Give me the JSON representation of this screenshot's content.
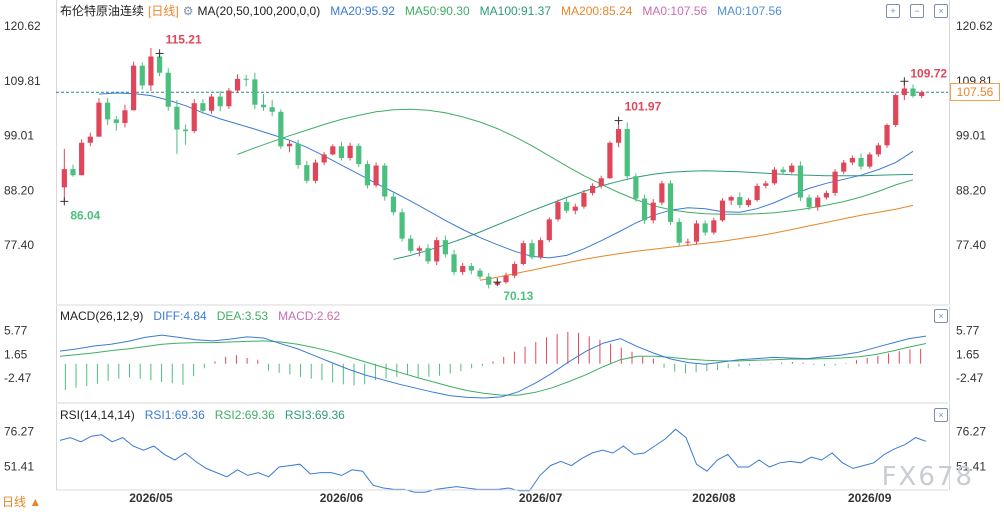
{
  "header": {
    "title": "布伦特原油连续",
    "period": "[日线]",
    "ma_label": "MA(20,50,100,200,0,0)",
    "ma20": "MA20:95.92",
    "ma50": "MA50:90.30",
    "ma100": "MA100:91.37",
    "ma200": "MA200:85.24",
    "ma0a": "MA0:107.56",
    "ma0b": "MA0:107.56"
  },
  "macd_header": {
    "label": "MACD(26,12,9)",
    "diff": "DIFF:4.84",
    "dea": "DEA:3.53",
    "macd": "MACD:2.62"
  },
  "rsi_header": {
    "label": "RSI(14,14,14)",
    "rsi1": "RSI1:69.36",
    "rsi2": "RSI2:69.36",
    "rsi3": "RSI3:69.36"
  },
  "footer": {
    "period_select": "日线 ▲",
    "watermark": "FX678"
  },
  "colors": {
    "up": "#e0465a",
    "down": "#4bbf7e",
    "ma20": "#3a7bd5",
    "ma50": "#3fae64",
    "ma100": "#2f9a7a",
    "ma200": "#e8862a",
    "ma0": "#c86db0",
    "price_line": "#1e8a9a"
  },
  "chart_data": [
    {
      "type": "candlestick",
      "y_ticks": [
        "120.62",
        "109.81",
        "99.01",
        "88.20",
        "77.40"
      ],
      "ylim": [
        66.6,
        121.8
      ],
      "x_ticks": [
        "2026/05",
        "2026/06",
        "2026/07",
        "2026/08",
        "2026/09"
      ],
      "last_price": "107.56",
      "annotations": [
        "115.21",
        "86.04",
        "101.97",
        "70.13",
        "109.72"
      ],
      "candles": [
        [
          88.8,
          96.4,
          86.0,
          92.4
        ],
        [
          92.4,
          93.3,
          90.9,
          91.2
        ],
        [
          91.2,
          98.3,
          91.2,
          97.6
        ],
        [
          97.6,
          99.6,
          96.9,
          98.8
        ],
        [
          98.8,
          106.4,
          98.8,
          105.5
        ],
        [
          105.5,
          106.4,
          101.1,
          102.2
        ],
        [
          102.2,
          102.9,
          100.0,
          101.5
        ],
        [
          101.5,
          105.1,
          100.6,
          104.0
        ],
        [
          104.0,
          113.6,
          104.0,
          112.8
        ],
        [
          112.8,
          113.5,
          108.1,
          108.9
        ],
        [
          108.9,
          116.3,
          107.8,
          114.6
        ],
        [
          114.6,
          115.2,
          110.7,
          111.4
        ],
        [
          111.4,
          112.3,
          103.9,
          104.7
        ],
        [
          104.7,
          106.0,
          95.4,
          100.2
        ],
        [
          100.2,
          101.2,
          97.2,
          99.9
        ],
        [
          99.9,
          106.2,
          99.5,
          105.4
        ],
        [
          105.4,
          106.2,
          103.3,
          103.9
        ],
        [
          103.9,
          107.2,
          103.3,
          106.7
        ],
        [
          106.7,
          107.8,
          103.8,
          104.8
        ],
        [
          104.8,
          108.4,
          104.3,
          107.9
        ],
        [
          107.9,
          111.1,
          107.4,
          110.2
        ],
        [
          110.2,
          111.0,
          108.7,
          110.1
        ],
        [
          110.1,
          111.4,
          104.2,
          105.1
        ],
        [
          105.1,
          107.2,
          103.9,
          104.6
        ],
        [
          104.6,
          106.1,
          102.8,
          103.7
        ],
        [
          103.7,
          104.2,
          96.4,
          96.9
        ],
        [
          96.9,
          98.1,
          95.7,
          97.4
        ],
        [
          97.4,
          98.2,
          92.5,
          93.2
        ],
        [
          93.2,
          94.0,
          89.6,
          90.1
        ],
        [
          90.1,
          94.3,
          89.6,
          93.7
        ],
        [
          93.7,
          95.8,
          93.2,
          95.3
        ],
        [
          95.3,
          97.3,
          95.1,
          96.9
        ],
        [
          96.9,
          97.8,
          94.1,
          94.6
        ],
        [
          94.6,
          97.6,
          94.1,
          97.0
        ],
        [
          97.0,
          97.5,
          92.8,
          93.4
        ],
        [
          93.4,
          94.1,
          88.6,
          89.2
        ],
        [
          89.2,
          93.7,
          88.8,
          93.1
        ],
        [
          93.1,
          93.6,
          86.2,
          87.0
        ],
        [
          87.0,
          87.9,
          83.3,
          83.9
        ],
        [
          83.9,
          84.6,
          78.1,
          78.7
        ],
        [
          78.7,
          79.4,
          75.8,
          76.3
        ],
        [
          76.3,
          77.3,
          75.2,
          76.8
        ],
        [
          76.8,
          77.6,
          73.7,
          74.2
        ],
        [
          74.2,
          79.0,
          73.5,
          78.4
        ],
        [
          78.4,
          79.3,
          75.0,
          75.6
        ],
        [
          75.6,
          76.5,
          71.5,
          72.1
        ],
        [
          72.1,
          73.9,
          71.5,
          73.3
        ],
        [
          73.3,
          73.9,
          71.7,
          72.4
        ],
        [
          72.4,
          72.9,
          70.7,
          71.2
        ],
        [
          71.2,
          71.9,
          68.9,
          69.6
        ],
        [
          69.6,
          70.3,
          70.1,
          70.1
        ],
        [
          70.1,
          72.0,
          69.8,
          71.4
        ],
        [
          71.4,
          74.2,
          70.9,
          73.7
        ],
        [
          73.7,
          78.3,
          73.4,
          77.8
        ],
        [
          77.8,
          78.5,
          74.6,
          75.0
        ],
        [
          75.0,
          78.9,
          74.6,
          78.4
        ],
        [
          78.4,
          82.9,
          78.0,
          82.5
        ],
        [
          82.5,
          86.4,
          82.1,
          85.9
        ],
        [
          85.9,
          86.7,
          83.7,
          84.2
        ],
        [
          84.2,
          85.6,
          83.5,
          85.0
        ],
        [
          85.0,
          88.3,
          84.6,
          87.7
        ],
        [
          87.7,
          89.6,
          87.2,
          89.1
        ],
        [
          89.1,
          91.1,
          88.6,
          90.6
        ],
        [
          90.6,
          97.9,
          90.5,
          97.6
        ],
        [
          97.6,
          102.0,
          96.7,
          100.3
        ],
        [
          100.3,
          101.6,
          90.2,
          91.0
        ],
        [
          91.0,
          91.6,
          86.0,
          86.6
        ],
        [
          86.6,
          87.4,
          81.6,
          82.3
        ],
        [
          82.3,
          86.5,
          81.7,
          85.8
        ],
        [
          85.8,
          90.1,
          85.3,
          89.6
        ],
        [
          89.6,
          90.2,
          81.4,
          82.0
        ],
        [
          82.0,
          82.7,
          77.2,
          77.9
        ],
        [
          77.9,
          78.7,
          77.3,
          78.1
        ],
        [
          78.1,
          82.3,
          77.6,
          81.7
        ],
        [
          81.7,
          82.3,
          79.3,
          79.9
        ],
        [
          79.9,
          82.8,
          79.5,
          82.3
        ],
        [
          82.3,
          86.7,
          82.0,
          86.2
        ],
        [
          86.2,
          87.2,
          85.3,
          86.9
        ],
        [
          86.9,
          87.8,
          84.7,
          85.3
        ],
        [
          85.3,
          86.7,
          84.9,
          86.3
        ],
        [
          86.3,
          89.6,
          86.0,
          89.1
        ],
        [
          89.1,
          90.1,
          88.6,
          89.6
        ],
        [
          89.6,
          92.8,
          89.3,
          92.3
        ],
        [
          92.3,
          92.9,
          91.3,
          91.8
        ],
        [
          91.8,
          93.6,
          91.5,
          93.1
        ],
        [
          93.1,
          93.9,
          86.1,
          86.8
        ],
        [
          86.8,
          87.4,
          84.3,
          84.9
        ],
        [
          84.9,
          87.3,
          84.2,
          86.8
        ],
        [
          86.8,
          88.2,
          86.4,
          87.7
        ],
        [
          87.7,
          92.4,
          87.1,
          91.9
        ],
        [
          91.9,
          94.2,
          91.4,
          93.7
        ],
        [
          93.7,
          95.1,
          93.2,
          94.6
        ],
        [
          94.6,
          95.5,
          92.3,
          92.9
        ],
        [
          92.9,
          95.7,
          92.5,
          95.3
        ],
        [
          95.3,
          97.6,
          94.8,
          97.1
        ],
        [
          97.1,
          101.4,
          96.6,
          101.1
        ],
        [
          101.1,
          107.3,
          100.7,
          107.0
        ],
        [
          107.0,
          109.7,
          106.0,
          108.3
        ],
        [
          108.3,
          109.1,
          106.5,
          106.8
        ],
        [
          106.8,
          107.9,
          106.4,
          107.56
        ]
      ],
      "ma20": [
        107.2,
        107.4,
        107.3,
        106.9,
        106.0,
        104.9,
        103.5,
        102.3,
        101.3,
        100.3,
        99.2,
        98.1,
        96.7,
        95.0,
        93.2,
        91.4,
        89.6,
        87.9,
        86.1,
        84.2,
        82.3,
        80.5,
        78.9,
        77.5,
        76.2,
        75.2,
        74.9,
        75.4,
        76.7,
        78.3,
        80.0,
        81.8,
        83.3,
        84.3,
        84.8,
        84.6,
        84.0,
        83.9,
        84.6,
        85.8,
        87.3,
        88.6,
        89.6,
        90.4,
        91.2,
        92.3,
        93.7,
        95.92
      ],
      "ma50": [
        95.3,
        96.6,
        97.8,
        99.0,
        100.1,
        101.2,
        102.2,
        103.0,
        103.7,
        104.1,
        104.2,
        104.0,
        103.5,
        102.7,
        101.7,
        100.4,
        98.8,
        97.0,
        95.0,
        93.0,
        91.1,
        89.4,
        87.8,
        86.4,
        85.2,
        84.4,
        83.9,
        83.6,
        83.5,
        83.5,
        83.6,
        83.8,
        84.2,
        84.7,
        85.3,
        86.0,
        86.9,
        88.0,
        89.3,
        90.3
      ],
      "ma100": [
        74.6,
        75.4,
        76.4,
        77.5,
        78.7,
        80.0,
        81.4,
        82.8,
        84.2,
        85.5,
        86.8,
        88.0,
        89.1,
        90.0,
        90.8,
        91.4,
        91.8,
        92.0,
        92.1,
        92.0,
        91.9,
        91.7,
        91.5,
        91.3,
        91.2,
        91.1,
        91.1,
        91.1,
        91.2,
        91.3,
        91.37
      ],
      "ma200": [
        70.5,
        71.1,
        71.8,
        72.5,
        73.2,
        73.9,
        74.6,
        75.2,
        75.7,
        76.2,
        76.6,
        77.0,
        77.4,
        77.8,
        78.2,
        78.7,
        79.2,
        79.8,
        80.5,
        81.2,
        81.9,
        82.6,
        83.3,
        83.9,
        84.5,
        85.24
      ],
      "ma0": 107.56
    },
    {
      "type": "bar+line",
      "name": "MACD",
      "y_ticks": [
        "5.77",
        "1.65",
        "-2.47"
      ],
      "ylim": [
        -6.0,
        6.6
      ],
      "diff": [
        2.2,
        2.6,
        3.1,
        3.4,
        3.9,
        4.6,
        5.0,
        4.6,
        4.2,
        4.0,
        4.3,
        4.7,
        4.5,
        3.5,
        2.6,
        1.4,
        0.2,
        -1.0,
        -2.0,
        -2.8,
        -3.6,
        -4.3,
        -5.0,
        -5.6,
        -5.9,
        -6.0,
        -5.8,
        -4.9,
        -3.4,
        -1.6,
        0.4,
        2.2,
        3.6,
        4.4,
        3.0,
        1.8,
        0.8,
        0.2,
        -0.1,
        0.3,
        0.7,
        0.9,
        1.1,
        1.0,
        0.9,
        1.2,
        1.5,
        2.0,
        2.8,
        3.6,
        4.4,
        4.84
      ],
      "dea": [
        1.3,
        1.6,
        1.9,
        2.3,
        2.6,
        3.0,
        3.4,
        3.6,
        3.7,
        3.7,
        3.8,
        3.9,
        4.0,
        3.8,
        3.4,
        2.8,
        2.1,
        1.2,
        0.3,
        -0.6,
        -1.5,
        -2.4,
        -3.2,
        -4.0,
        -4.7,
        -5.2,
        -5.5,
        -5.5,
        -5.0,
        -4.2,
        -3.1,
        -1.9,
        -0.5,
        0.7,
        1.3,
        1.3,
        1.1,
        0.8,
        0.6,
        0.5,
        0.5,
        0.6,
        0.7,
        0.8,
        0.8,
        0.9,
        1.0,
        1.2,
        1.6,
        2.2,
        2.9,
        3.53
      ],
      "histogram": [
        -4.6,
        -4.2,
        -3.9,
        -3.5,
        -3.0,
        -2.6,
        -2.4,
        -2.6,
        -2.9,
        -3.2,
        -3.4,
        -3.7,
        -2.2,
        -0.8,
        0.4,
        1.2,
        1.5,
        1.0,
        0.7,
        -1.2,
        -1.6,
        -1.9,
        -2.3,
        -2.6,
        -2.9,
        -3.3,
        -3.6,
        -3.8,
        -3.6,
        -2.9,
        -2.6,
        -2.3,
        -2.0,
        -2.4,
        -2.3,
        -2.1,
        -1.7,
        -1.3,
        -0.8,
        -0.4,
        0.4,
        1.2,
        2.1,
        3.0,
        3.8,
        4.6,
        5.2,
        5.6,
        5.4,
        4.8,
        4.2,
        3.5,
        2.8,
        2.1,
        1.3,
        0.9,
        -0.7,
        -1.4,
        -1.7,
        -1.5,
        -1.3,
        -1.1,
        -0.8,
        -0.5,
        -0.3,
        -0.1,
        0.1,
        0.2,
        0.3,
        0.2,
        -0.2,
        -0.4,
        -0.3,
        0.1,
        0.6,
        1.0,
        1.4,
        1.8,
        2.2,
        2.5,
        2.62
      ]
    },
    {
      "type": "line",
      "name": "RSI",
      "y_ticks": [
        "76.27",
        "51.41"
      ],
      "ylim": [
        36.0,
        86.0
      ],
      "rsi": [
        70,
        72,
        69,
        73,
        74,
        69,
        72,
        66,
        63,
        66,
        60,
        56,
        61,
        55,
        50,
        47,
        44,
        49,
        45,
        47,
        44,
        51,
        52,
        53,
        46,
        47,
        47,
        45,
        49,
        48,
        38,
        36,
        35,
        35,
        33,
        33,
        35,
        36,
        37,
        36,
        35,
        35,
        35,
        36,
        34,
        34,
        45,
        52,
        55,
        52,
        57,
        61,
        63,
        61,
        66,
        60,
        61,
        66,
        71,
        78,
        72,
        53,
        48,
        56,
        60,
        51,
        51,
        56,
        51,
        54,
        55,
        54,
        58,
        56,
        61,
        54,
        50,
        52,
        54,
        60,
        64,
        67,
        72,
        69.36
      ]
    }
  ]
}
